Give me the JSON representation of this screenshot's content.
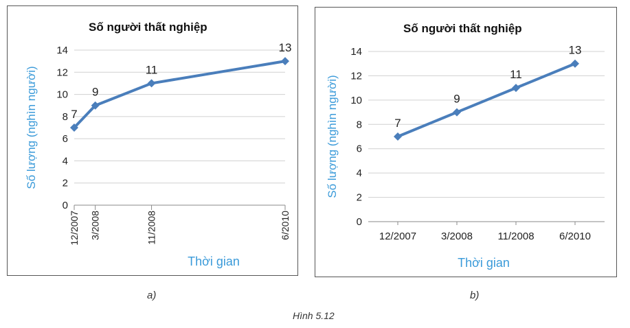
{
  "caption": "Hình 5.12",
  "colors": {
    "line": "#4a7ebb",
    "axis_title": "#3a9ad9",
    "grid": "#d0d0d0",
    "text": "#222222"
  },
  "chart_data": [
    {
      "panel_label": "a)",
      "type": "line",
      "title": "Số người thất nghiệp",
      "xlabel": "Thời gian",
      "ylabel": "Số lượng (nghìn người)",
      "x_axis": "time-proportional",
      "x_tick_labels": [
        "12/2007",
        "3/2008",
        "11/2008",
        "6/2010"
      ],
      "x_tick_orientation": "vertical",
      "ylim": [
        0,
        14
      ],
      "yticks": [
        0,
        2,
        4,
        6,
        8,
        10,
        12,
        14
      ],
      "grid": true,
      "series": [
        {
          "x": [
            "12/2007",
            "3/2008",
            "11/2008",
            "6/2010"
          ],
          "values": [
            7,
            9,
            11,
            13
          ],
          "data_labels": [
            "7",
            "9",
            "11",
            "13"
          ]
        }
      ]
    },
    {
      "panel_label": "b)",
      "type": "line",
      "title": "Số người thất nghiệp",
      "xlabel": "Thời gian",
      "ylabel": "Số lượng (nghìn người)",
      "x_axis": "category",
      "x_tick_labels": [
        "12/2007",
        "3/2008",
        "11/2008",
        "6/2010"
      ],
      "x_tick_orientation": "horizontal",
      "ylim": [
        0,
        14
      ],
      "yticks": [
        0,
        2,
        4,
        6,
        8,
        10,
        12,
        14
      ],
      "grid": true,
      "series": [
        {
          "x": [
            "12/2007",
            "3/2008",
            "11/2008",
            "6/2010"
          ],
          "values": [
            7,
            9,
            11,
            13
          ],
          "data_labels": [
            "7",
            "9",
            "11",
            "13"
          ]
        }
      ]
    }
  ]
}
